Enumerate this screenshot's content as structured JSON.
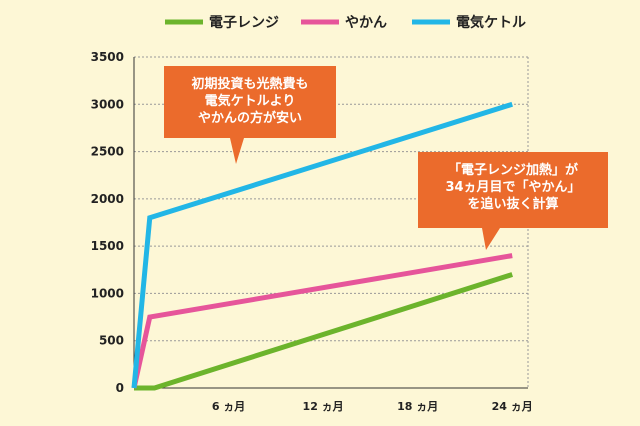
{
  "colors": {
    "background": "#fdf7d6",
    "microwave": "#6cb42c",
    "kettle": "#e6559a",
    "electric_kettle": "#22b6e6",
    "callout": "#eb6b2c",
    "grid": "#999999"
  },
  "legend": [
    {
      "label": "電子レンジ",
      "color": "#6cb42c"
    },
    {
      "label": "やかん",
      "color": "#e6559a"
    },
    {
      "label": "電気ケトル",
      "color": "#22b6e6"
    }
  ],
  "callouts": [
    {
      "lines": [
        "初期投資も光熱費も",
        "電気ケトルより",
        "やかんの方が安い"
      ]
    },
    {
      "lines": [
        "「電子レンジ加熱」が",
        "34ヵ月目で「やかん」",
        "を追い抜く計算"
      ]
    }
  ],
  "chart_data": {
    "type": "line",
    "x_ticks": [
      {
        "value": 6,
        "label": "6 ヵ月"
      },
      {
        "value": 12,
        "label": "12 ヵ月"
      },
      {
        "value": 18,
        "label": "18 ヵ月"
      },
      {
        "value": 24,
        "label": "24 ヵ月"
      }
    ],
    "y_ticks": [
      0,
      500,
      1000,
      1500,
      2000,
      2500,
      3000,
      3500
    ],
    "xlim": [
      0,
      25
    ],
    "ylim": [
      0,
      3500
    ],
    "grid": true,
    "legend_position": "top",
    "series": [
      {
        "name": "電子レンジ",
        "color": "#6cb42c",
        "points": [
          [
            0,
            0
          ],
          [
            1.3,
            0
          ],
          [
            24,
            1200
          ]
        ]
      },
      {
        "name": "やかん",
        "color": "#e6559a",
        "points": [
          [
            0,
            0
          ],
          [
            1,
            750
          ],
          [
            24,
            1400
          ]
        ]
      },
      {
        "name": "電気ケトル",
        "color": "#22b6e6",
        "points": [
          [
            0,
            0
          ],
          [
            1,
            1800
          ],
          [
            24,
            3000
          ]
        ]
      }
    ]
  }
}
